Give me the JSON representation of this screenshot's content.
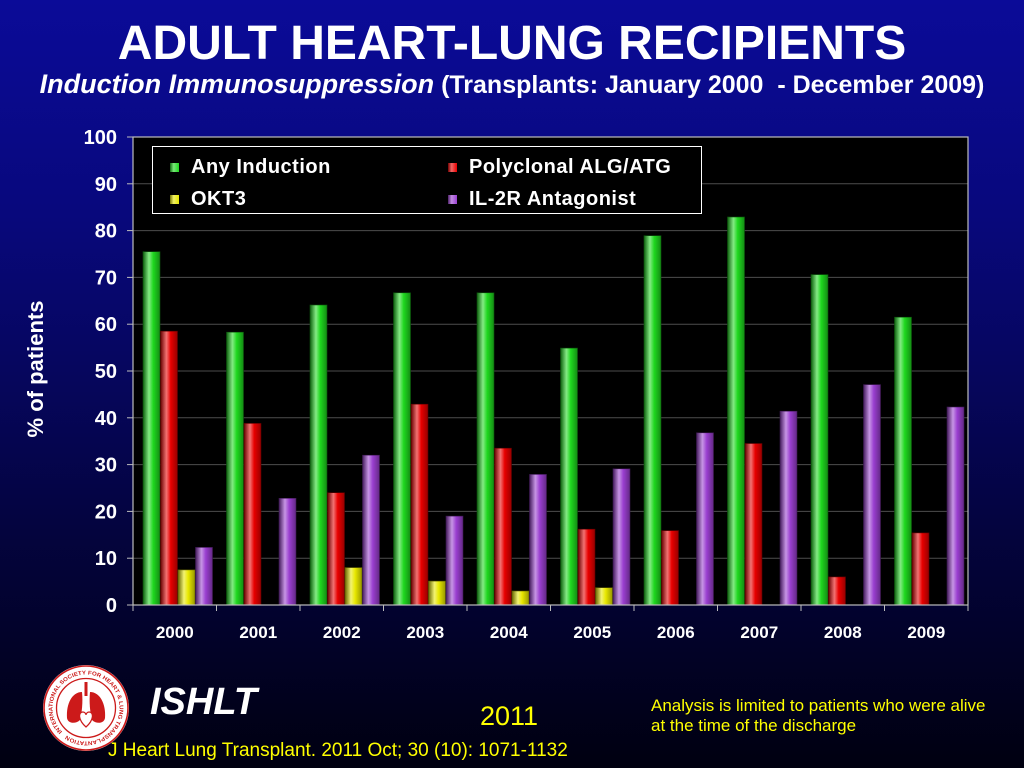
{
  "chart_data": {
    "type": "bar",
    "title": "ADULT HEART-LUNG RECIPIENTS",
    "subtitle_main": "Induction Immunosuppression",
    "subtitle_detail": " (Transplants: January 2000  - December 2009)",
    "ylabel": "% of patients",
    "ylim": [
      0,
      100
    ],
    "yticks": [
      0,
      10,
      20,
      30,
      40,
      50,
      60,
      70,
      80,
      90,
      100
    ],
    "categories": [
      "2000",
      "2001",
      "2002",
      "2003",
      "2004",
      "2005",
      "2006",
      "2007",
      "2008",
      "2009"
    ],
    "grid": true,
    "legend_position": "top-left",
    "series": [
      {
        "name": "Any Induction",
        "color": "#1fd81f",
        "values": [
          75.5,
          58.3,
          64.1,
          66.7,
          66.7,
          54.9,
          78.9,
          82.9,
          70.6,
          61.5
        ]
      },
      {
        "name": "Polyclonal ALG/ATG",
        "color": "#e80000",
        "values": [
          58.5,
          38.8,
          24.0,
          42.9,
          33.5,
          16.2,
          15.9,
          34.5,
          6.0,
          15.4
        ]
      },
      {
        "name": "OKT3",
        "color": "#e8e800",
        "values": [
          7.5,
          0,
          8.0,
          5.1,
          3.0,
          3.7,
          0,
          0,
          0,
          0
        ]
      },
      {
        "name": "IL-2R Antagonist",
        "color": "#9a3fd0",
        "values": [
          12.3,
          22.8,
          32.0,
          19.0,
          27.9,
          29.1,
          36.8,
          41.4,
          47.1,
          42.3
        ]
      }
    ]
  },
  "logo": {
    "seal_text": "INTERNATIONAL SOCIETY FOR HEART & LUNG TRANSPLANTATION"
  },
  "footer": {
    "org": "ISHLT",
    "year": "2011",
    "note_line1": "Analysis is limited to patients who were alive",
    "note_line2": "at the time of the discharge",
    "citation": "J Heart Lung Transplant. 2011 Oct; 30 (10): 1071-1132"
  }
}
